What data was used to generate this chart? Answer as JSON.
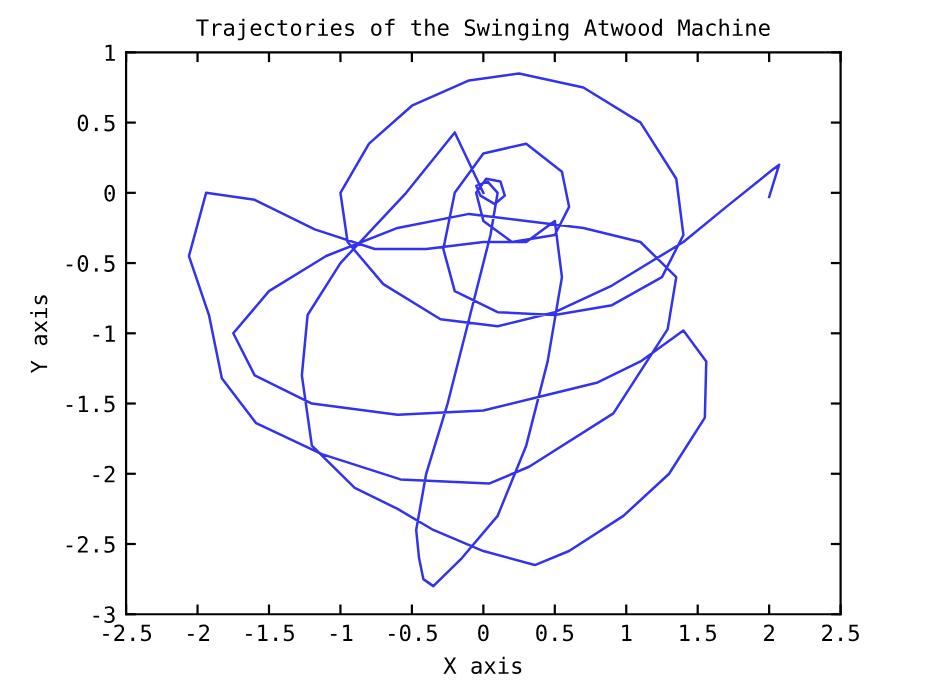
{
  "chart_data": {
    "type": "line",
    "title": "Trajectories of the Swinging Atwood Machine",
    "xlabel": "X axis",
    "ylabel": "Y axis",
    "xlim": [
      -2.5,
      2.5
    ],
    "ylim": [
      -3,
      1
    ],
    "xticks": [
      -2.5,
      -2,
      -1.5,
      -1,
      -0.5,
      0,
      0.5,
      1,
      1.5,
      2,
      2.5
    ],
    "yticks": [
      -3,
      -2.5,
      -2,
      -1.5,
      -1,
      -0.5,
      0,
      0.5,
      1
    ],
    "grid": false,
    "marker": "none",
    "line_style": "solid",
    "series": [
      {
        "color": "#3333ee",
        "x": [
          2.0,
          2.07,
          2.03,
          1.7,
          1.4,
          0.9,
          0.5,
          0.1,
          -0.3,
          -0.7,
          -0.95,
          -1.0,
          -0.8,
          -0.5,
          -0.1,
          0.25,
          0.7,
          1.1,
          1.35,
          1.4,
          1.25,
          0.9,
          0.5,
          0.1,
          -0.2,
          -0.28,
          -0.2,
          0.0,
          0.3,
          0.55,
          0.6,
          0.5,
          0.2,
          0.0,
          -0.05,
          0.02,
          0.12,
          0.15,
          0.08,
          -0.02,
          -0.05,
          0.03,
          0.1,
          0.05,
          -0.1,
          -0.25,
          -0.4,
          -0.47,
          -0.45,
          -0.42,
          -0.35,
          -0.15,
          0.1,
          0.3,
          0.45,
          0.55,
          0.5,
          0.3,
          0.0,
          -0.4,
          -0.76,
          -1.18,
          -1.6,
          -1.94,
          -2.06,
          -1.92,
          -1.83,
          -1.59,
          -1.13,
          -0.58,
          0.04,
          0.32,
          0.91,
          1.29,
          1.35,
          1.1,
          0.7,
          0.3,
          -0.1,
          -0.6,
          -1.1,
          -1.5,
          -1.75,
          -1.6,
          -1.2,
          -0.6,
          0.0,
          0.4,
          0.8,
          1.1,
          1.4,
          1.56,
          1.55,
          1.3,
          0.98,
          0.6,
          0.36,
          0.0,
          -0.35,
          -0.6,
          -0.9,
          -1.2,
          -1.27,
          -1.23,
          -1.0,
          -0.54,
          -0.2,
          0.0
        ],
        "values": [
          -0.03,
          0.2,
          0.17,
          -0.1,
          -0.35,
          -0.66,
          -0.85,
          -0.95,
          -0.9,
          -0.65,
          -0.35,
          0.0,
          0.35,
          0.62,
          0.8,
          0.85,
          0.75,
          0.5,
          0.1,
          -0.3,
          -0.6,
          -0.8,
          -0.87,
          -0.85,
          -0.7,
          -0.4,
          0.0,
          0.28,
          0.35,
          0.15,
          -0.1,
          -0.3,
          -0.35,
          -0.2,
          0.0,
          0.1,
          0.08,
          -0.02,
          -0.08,
          -0.02,
          0.05,
          0.08,
          0.0,
          -0.3,
          -0.9,
          -1.5,
          -2.0,
          -2.4,
          -2.6,
          -2.75,
          -2.8,
          -2.6,
          -2.3,
          -1.8,
          -1.2,
          -0.6,
          -0.2,
          -0.35,
          -0.35,
          -0.4,
          -0.4,
          -0.26,
          -0.05,
          0.0,
          -0.45,
          -0.87,
          -1.32,
          -1.64,
          -1.86,
          -2.04,
          -2.07,
          -1.95,
          -1.57,
          -0.97,
          -0.6,
          -0.35,
          -0.25,
          -0.2,
          -0.15,
          -0.25,
          -0.45,
          -0.7,
          -1.0,
          -1.3,
          -1.5,
          -1.58,
          -1.55,
          -1.45,
          -1.35,
          -1.2,
          -0.98,
          -1.2,
          -1.6,
          -2.0,
          -2.3,
          -2.55,
          -2.65,
          -2.55,
          -2.4,
          -2.25,
          -2.1,
          -1.8,
          -1.3,
          -0.87,
          -0.5,
          0.0,
          0.43,
          0.0
        ]
      }
    ]
  }
}
